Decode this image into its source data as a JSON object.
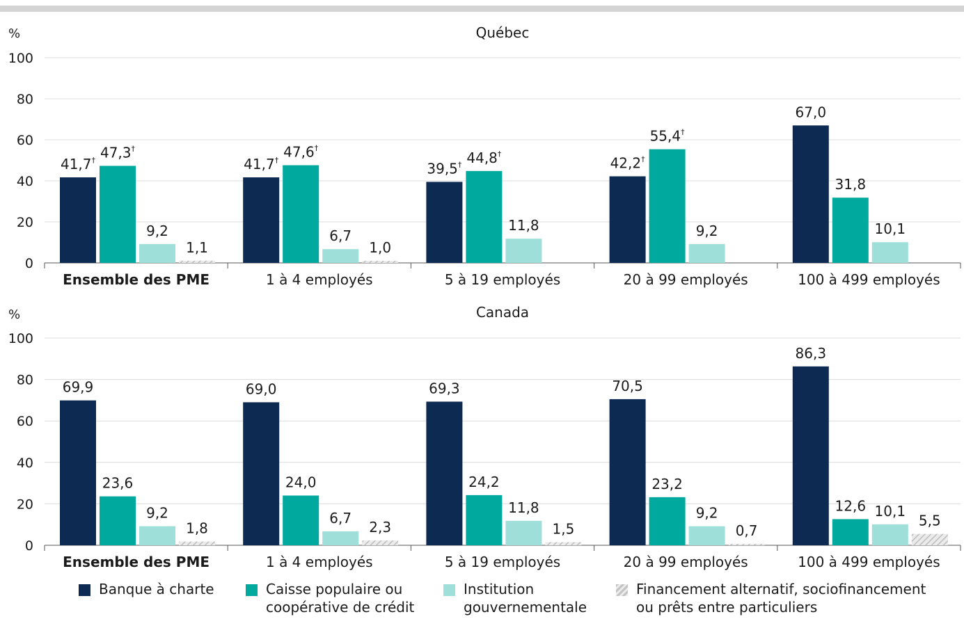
{
  "colors": {
    "chartered_bank": "#0d2a52",
    "credit_union": "#00a99d",
    "government": "#9ee0d9",
    "alternative": "#d4d4d4"
  },
  "legend": [
    {
      "key": "chartered_bank",
      "label_line1": "Banque à charte",
      "label_line2": ""
    },
    {
      "key": "credit_union",
      "label_line1": "Caisse populaire ou",
      "label_line2": "coopérative de crédit"
    },
    {
      "key": "government",
      "label_line1": "Institution",
      "label_line2": "gouvernementale"
    },
    {
      "key": "alternative",
      "label_line1": "Financement alternatif, sociofinancement",
      "label_line2": "ou prêts entre particuliers"
    }
  ],
  "chart_data": [
    {
      "type": "bar",
      "title": "Québec",
      "ylabel": "%",
      "ylim": [
        0,
        100
      ],
      "yticks": [
        0,
        20,
        40,
        60,
        80,
        100
      ],
      "grid": true,
      "categories": [
        "Ensemble des PME",
        "1 à 4 employés",
        "5 à 19 employés",
        "20 à 99 employés",
        "100 à 499 employés"
      ],
      "series": [
        {
          "name": "Banque à charte",
          "key": "chartered_bank",
          "values": [
            41.7,
            41.7,
            39.5,
            42.2,
            67.0
          ],
          "labels": [
            "41,7",
            "41,7",
            "39,5",
            "42,2",
            "67,0"
          ],
          "dagger": [
            true,
            true,
            true,
            true,
            false
          ]
        },
        {
          "name": "Caisse populaire ou coopérative de crédit",
          "key": "credit_union",
          "values": [
            47.3,
            47.6,
            44.8,
            55.4,
            31.8
          ],
          "labels": [
            "47,3",
            "47,6",
            "44,8",
            "55,4",
            "31,8"
          ],
          "dagger": [
            true,
            true,
            true,
            true,
            false
          ]
        },
        {
          "name": "Institution gouvernementale",
          "key": "government",
          "values": [
            9.2,
            6.7,
            11.8,
            9.2,
            10.1
          ],
          "labels": [
            "9,2",
            "6,7",
            "11,8",
            "9,2",
            "10,1"
          ],
          "dagger": [
            false,
            false,
            false,
            false,
            false
          ]
        },
        {
          "name": "Financement alternatif, sociofinancement ou prêts entre particuliers",
          "key": "alternative",
          "values": [
            1.1,
            1.0,
            null,
            null,
            null
          ],
          "labels": [
            "1,1",
            "1,0",
            "",
            "",
            ""
          ],
          "dagger": [
            false,
            false,
            false,
            false,
            false
          ]
        }
      ]
    },
    {
      "type": "bar",
      "title": "Canada",
      "ylabel": "%",
      "ylim": [
        0,
        100
      ],
      "yticks": [
        0,
        20,
        40,
        60,
        80,
        100
      ],
      "grid": true,
      "categories": [
        "Ensemble des PME",
        "1 à 4 employés",
        "5 à 19 employés",
        "20 à 99 employés",
        "100 à 499 employés"
      ],
      "series": [
        {
          "name": "Banque à charte",
          "key": "chartered_bank",
          "values": [
            69.9,
            69.0,
            69.3,
            70.5,
            86.3
          ],
          "labels": [
            "69,9",
            "69,0",
            "69,3",
            "70,5",
            "86,3"
          ],
          "dagger": [
            false,
            false,
            false,
            false,
            false
          ]
        },
        {
          "name": "Caisse populaire ou coopérative de crédit",
          "key": "credit_union",
          "values": [
            23.6,
            24.0,
            24.2,
            23.2,
            12.6
          ],
          "labels": [
            "23,6",
            "24,0",
            "24,2",
            "23,2",
            "12,6"
          ],
          "dagger": [
            false,
            false,
            false,
            false,
            false
          ]
        },
        {
          "name": "Institution gouvernementale",
          "key": "government",
          "values": [
            9.2,
            6.7,
            11.8,
            9.2,
            10.1
          ],
          "labels": [
            "9,2",
            "6,7",
            "11,8",
            "9,2",
            "10,1"
          ],
          "dagger": [
            false,
            false,
            false,
            false,
            false
          ]
        },
        {
          "name": "Financement alternatif, sociofinancement ou prêts entre particuliers",
          "key": "alternative",
          "values": [
            1.8,
            2.3,
            1.5,
            0.7,
            5.5
          ],
          "labels": [
            "1,8",
            "2,3",
            "1,5",
            "0,7",
            "5,5"
          ],
          "dagger": [
            false,
            false,
            false,
            false,
            false
          ]
        }
      ]
    }
  ]
}
